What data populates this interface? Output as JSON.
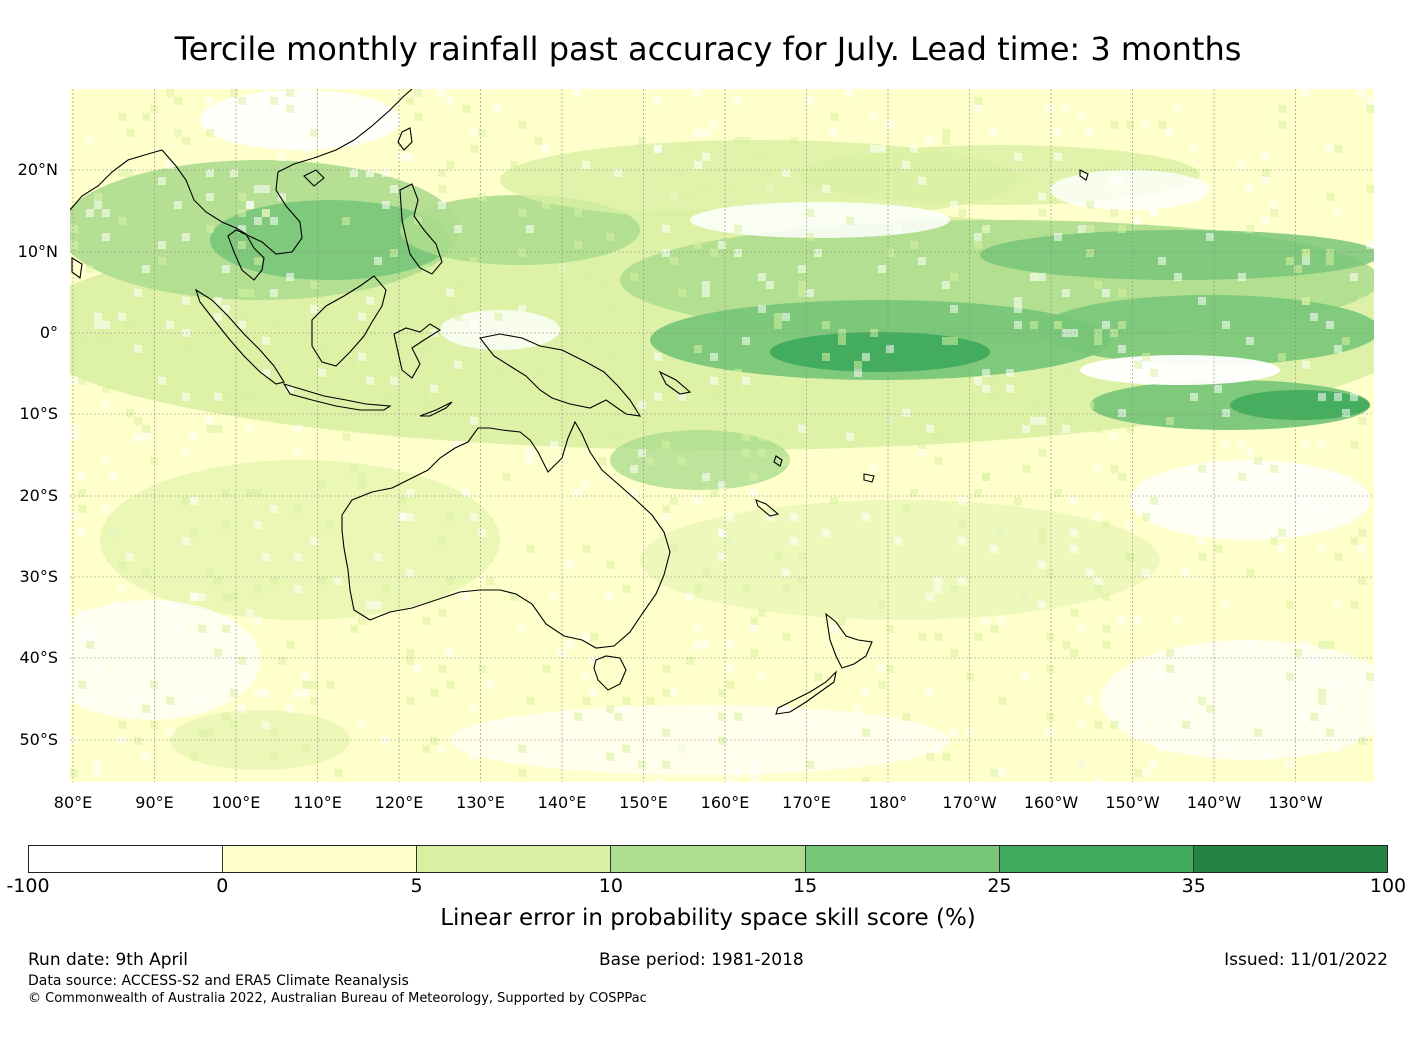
{
  "title": "Tercile monthly rainfall past accuracy for July. Lead time: 3 months",
  "map": {
    "lat_labels": [
      "20°N",
      "10°N",
      "0°",
      "10°S",
      "20°S",
      "30°S",
      "40°S",
      "50°S"
    ],
    "lon_labels": [
      "80°E",
      "90°E",
      "100°E",
      "110°E",
      "120°E",
      "130°E",
      "140°E",
      "150°E",
      "160°E",
      "170°E",
      "180°",
      "170°W",
      "160°W",
      "150°W",
      "140°W",
      "130°W"
    ]
  },
  "colorbar": {
    "ticks": [
      "-100",
      "0",
      "5",
      "10",
      "15",
      "25",
      "35",
      "100"
    ],
    "colors": [
      "#ffffff",
      "#ffffcc",
      "#d9f0a3",
      "#addd8e",
      "#78c679",
      "#41ab5d",
      "#238443"
    ],
    "label": "Linear error in probability space skill score (%)"
  },
  "footer": {
    "run_date": "Run date: 9th April",
    "base_period": "Base period: 1981-2018",
    "issued": "Issued: 11/01/2022",
    "data_source": "Data source: ACCESS-S2 and ERA5 Climate Reanalysis",
    "copyright": "© Commonwealth of Australia 2022, Australian Bureau of Meteorology, Supported by COSPPac"
  }
}
